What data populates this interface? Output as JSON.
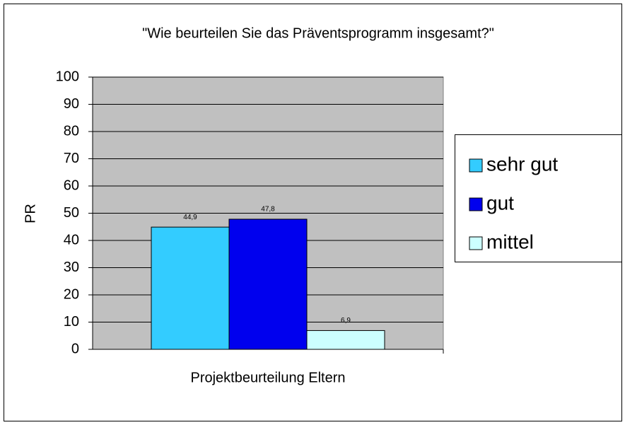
{
  "chart_data": {
    "type": "bar",
    "title": "\"Wie beurteilen Sie das Präventsprogramm insgesamt?\"",
    "y_label": "PR",
    "categories": [
      "Projektbeurteilung Eltern"
    ],
    "series": [
      {
        "name": "sehr gut",
        "color": "#33ccff",
        "values": [
          44.9
        ],
        "value_labels": [
          "44,9"
        ]
      },
      {
        "name": "gut",
        "color": "#0000ee",
        "values": [
          47.8
        ],
        "value_labels": [
          "47,8"
        ]
      },
      {
        "name": "mittel",
        "color": "#ccffff",
        "values": [
          6.9
        ],
        "value_labels": [
          "6,9"
        ]
      }
    ],
    "ylim": [
      0,
      100
    ],
    "yticks": [
      0,
      10,
      20,
      30,
      40,
      50,
      60,
      70,
      80,
      90,
      100
    ],
    "grid": true,
    "legend": "right"
  }
}
